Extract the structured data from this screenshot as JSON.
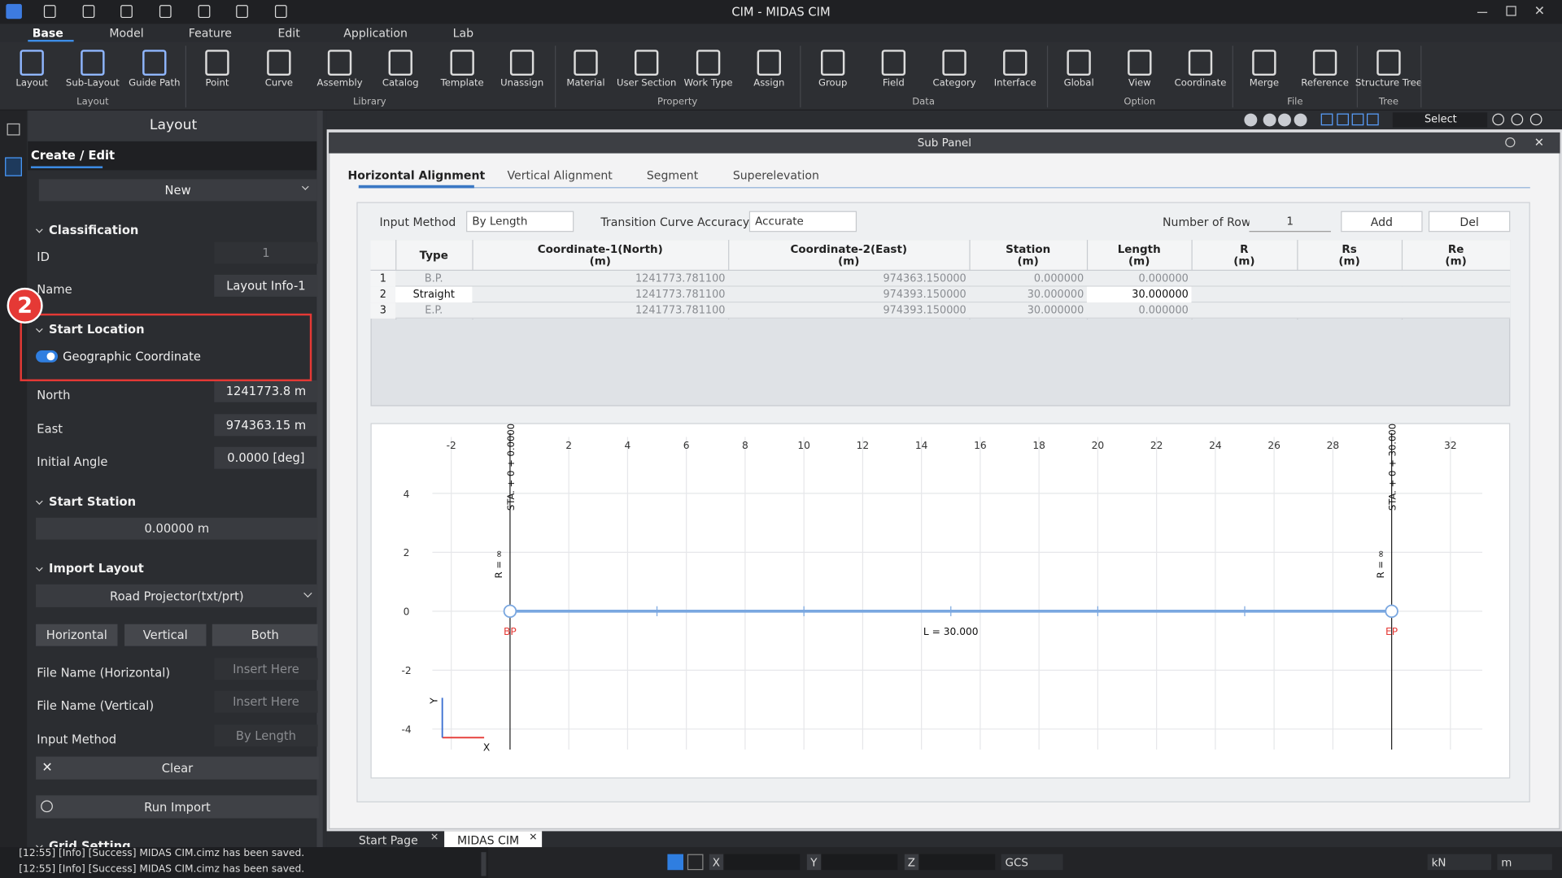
{
  "title_bar": {
    "title": "CIM - MIDAS CIM"
  },
  "menu_tabs": [
    "Base",
    "Model",
    "Feature",
    "Edit",
    "Application",
    "Lab"
  ],
  "ribbon": {
    "groups": [
      {
        "label": "Layout",
        "buttons": [
          "Layout",
          "Sub-Layout",
          "Guide Path"
        ]
      },
      {
        "label": "Library",
        "buttons": [
          "Point",
          "Curve",
          "Assembly",
          "Catalog",
          "Template",
          "Unassign"
        ]
      },
      {
        "label": "Property",
        "buttons": [
          "Material",
          "User Section",
          "Work Type",
          "Assign"
        ]
      },
      {
        "label": "Data",
        "buttons": [
          "Group",
          "Field",
          "Category",
          "Interface"
        ]
      },
      {
        "label": "Option",
        "buttons": [
          "Global",
          "View",
          "Coordinate"
        ]
      },
      {
        "label": "File",
        "buttons": [
          "Merge",
          "Reference"
        ]
      },
      {
        "label": "Tree",
        "buttons": [
          "Structure Tree"
        ]
      }
    ]
  },
  "toolbar": {
    "select": "Select"
  },
  "left_panel": {
    "title": "Layout",
    "tab": "Create / Edit",
    "mode": "New",
    "classification": {
      "heading": "Classification",
      "id_label": "ID",
      "id_value": "1",
      "name_label": "Name",
      "name_value": "Layout Info-1"
    },
    "start_location": {
      "heading": "Start Location",
      "toggle": "Geographic Coordinate",
      "north_label": "North",
      "north_value": "1241773.8 m",
      "east_label": "East",
      "east_value": "974363.15 m",
      "angle_label": "Initial Angle",
      "angle_value": "0.0000 [deg]"
    },
    "start_station": {
      "heading": "Start Station",
      "value": "0.00000 m"
    },
    "import_layout": {
      "heading": "Import Layout",
      "format": "Road Projector(txt/prt)",
      "buttons": [
        "Horizontal",
        "Vertical",
        "Both"
      ],
      "file_h_label": "File Name (Horizontal)",
      "file_h_placeholder": "Insert Here",
      "file_v_label": "File Name (Vertical)",
      "file_v_placeholder": "Insert Here",
      "method_label": "Input Method",
      "method_value": "By Length",
      "clear": "Clear",
      "run": "Run Import"
    },
    "grid_setting": {
      "heading": "Grid Setting"
    }
  },
  "annotation": {
    "marker": "2"
  },
  "sub_panel": {
    "title": "Sub Panel",
    "tabs": [
      "Horizontal Alignment",
      "Vertical Alignment",
      "Segment",
      "Superelevation"
    ],
    "input_method_label": "Input Method",
    "input_method_value": "By Length",
    "accuracy_label": "Transition Curve Accuracy",
    "accuracy_value": "Accurate",
    "rows_label": "Number of Row",
    "rows_value": "1",
    "add": "Add",
    "del": "Del",
    "table": {
      "columns": [
        {
          "name": "Type"
        },
        {
          "name": "Coordinate-1(North)",
          "unit": "(m)"
        },
        {
          "name": "Coordinate-2(East)",
          "unit": "(m)"
        },
        {
          "name": "Station",
          "unit": "(m)"
        },
        {
          "name": "Length",
          "unit": "(m)"
        },
        {
          "name": "R",
          "unit": "(m)"
        },
        {
          "name": "Rs",
          "unit": "(m)"
        },
        {
          "name": "Re",
          "unit": "(m)"
        }
      ],
      "rows": [
        {
          "no": "1",
          "cells": [
            "B.P.",
            "1241773.781100",
            "974363.150000",
            "0.000000",
            "0.000000"
          ]
        },
        {
          "no": "2",
          "cells": [
            "Straight",
            "1241773.781100",
            "974393.150000",
            "30.000000",
            "30.000000"
          ]
        },
        {
          "no": "3",
          "cells": [
            "E.P.",
            "1241773.781100",
            "974393.150000",
            "30.000000",
            "0.000000"
          ]
        }
      ]
    },
    "plot": {
      "xticks": [
        -2,
        2,
        4,
        6,
        8,
        10,
        12,
        14,
        16,
        18,
        20,
        22,
        24,
        26,
        28,
        32
      ],
      "yticks": [
        4,
        2,
        0,
        -2,
        -4
      ],
      "alignment_x": [
        0,
        30
      ],
      "station_marks": [
        5,
        10,
        15,
        20,
        25
      ],
      "start_label": "STA. + 0 + 0.0000",
      "end_label": "STA. + 0 + 30.000",
      "radius_label": "R = ∞",
      "bp": "BP",
      "ep": "EP",
      "length_label": "L = 30.000",
      "x_axis": "X",
      "y_axis": "Y"
    }
  },
  "doc_tabs": [
    "Start Page",
    "MIDAS CIM"
  ],
  "log": [
    "[12:55] [Info] [Success] MIDAS CIM.cimz has been saved.",
    "[12:55] [Info] [Success] MIDAS CIM.cimz has been saved."
  ],
  "status_bar": {
    "x": "X",
    "y": "Y",
    "z": "Z",
    "coord": "GCS",
    "force": "kN",
    "length": "m"
  }
}
